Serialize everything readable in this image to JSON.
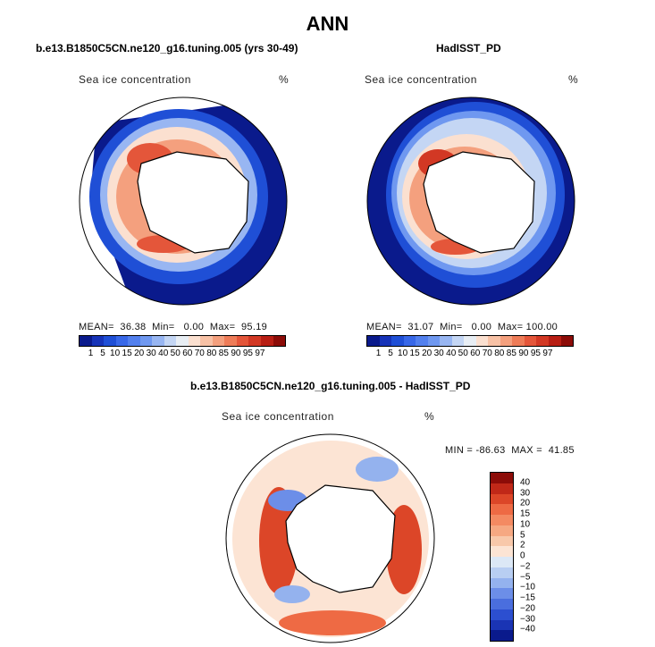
{
  "main_title": "ANN",
  "panels": [
    {
      "title": "b.e13.B1850C5CN.ne120_g16.tuning.005 (yrs 30-49)",
      "field": "Sea ice concentration",
      "unit": "%",
      "stats": "MEAN=  36.38  Min=   0.00  Max=  95.19"
    },
    {
      "title": "HadISST_PD",
      "field": "Sea ice concentration",
      "unit": "%",
      "stats": "MEAN=  31.07  Min=   0.00  Max= 100.00"
    },
    {
      "title": "b.e13.B1850C5CN.ne120_g16.tuning.005 - HadISST_PD",
      "field": "Sea ice concentration",
      "unit": "%",
      "stats": "MIN = -86.63  MAX =  41.85"
    }
  ],
  "colorbar_abs": {
    "labels": [
      "1",
      "5",
      "10",
      "15",
      "20",
      "30",
      "40",
      "50",
      "60",
      "70",
      "80",
      "85",
      "90",
      "95",
      "97"
    ],
    "colors": [
      "#0a1a8c",
      "#1633b8",
      "#1f4fd6",
      "#3868e8",
      "#5280ee",
      "#6f98f0",
      "#98b6f2",
      "#c4d6f4",
      "#e8eef4",
      "#fbe0d0",
      "#f8c2a6",
      "#f4a07e",
      "#ee7c58",
      "#e4563a",
      "#d23824",
      "#b81e14",
      "#8c0c08"
    ]
  },
  "colorbar_diff": {
    "labels": [
      "40",
      "30",
      "20",
      "15",
      "10",
      "5",
      "2",
      "0",
      "−2",
      "−5",
      "−10",
      "−15",
      "−20",
      "−30",
      "−40"
    ],
    "colors": [
      "#8c0c08",
      "#c02818",
      "#dc4628",
      "#ee6a44",
      "#f48a62",
      "#f6a882",
      "#f8c8aa",
      "#fce4d4",
      "#dce8f6",
      "#b8cef2",
      "#94b2ee",
      "#6c8ee8",
      "#4a6ede",
      "#2c4fd0",
      "#1a34b4",
      "#0a1a8c"
    ]
  }
}
